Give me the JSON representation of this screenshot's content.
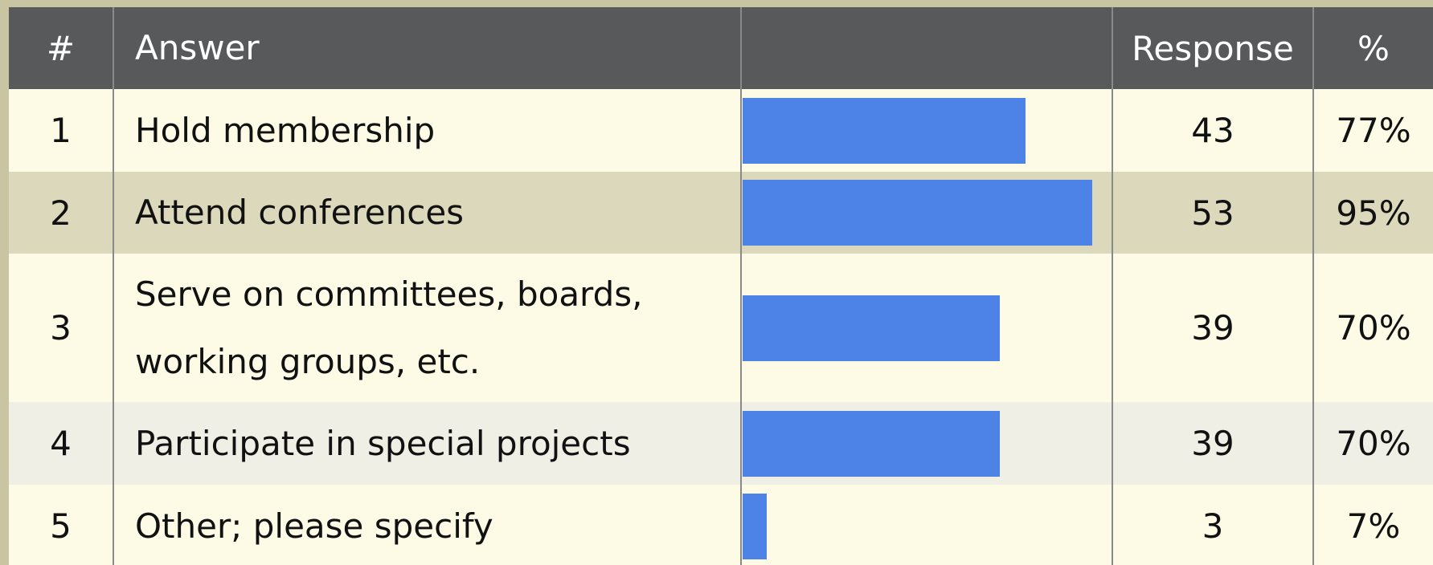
{
  "table": {
    "header": [
      "#",
      "Answer",
      "",
      "Response",
      "%"
    ],
    "rows": [
      {
        "num": "1",
        "answer": "Hold membership",
        "response": 43,
        "percent": 77,
        "percent_label": "77%"
      },
      {
        "num": "2",
        "answer": "Attend conferences",
        "response": 53,
        "percent": 95,
        "percent_label": "95%"
      },
      {
        "num": "3",
        "answer": "Serve on committees, boards, working groups, etc.",
        "response": 39,
        "percent": 70,
        "percent_label": "70%"
      },
      {
        "num": "4",
        "answer": "Participate in special projects",
        "response": 39,
        "percent": 70,
        "percent_label": "70%"
      },
      {
        "num": "5",
        "answer": "Other; please specify",
        "response": 3,
        "percent": 7,
        "percent_label": "7%"
      }
    ]
  }
}
